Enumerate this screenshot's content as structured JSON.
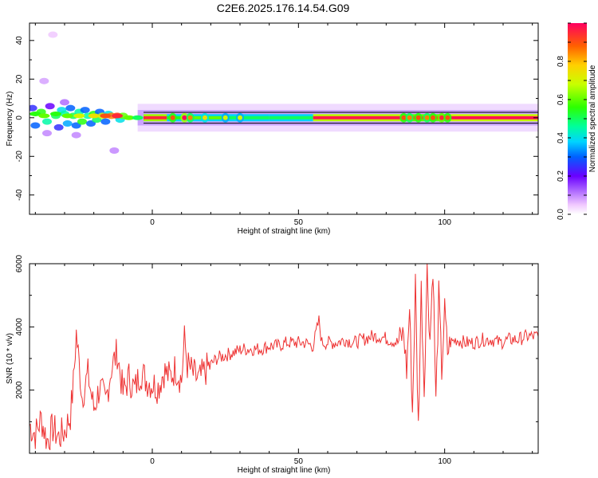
{
  "title": "C2E6.2025.176.14.54.G09",
  "chart_data": [
    {
      "type": "heatmap",
      "xlabel": "Height of straight line (km)",
      "ylabel": "Frequency (Hz)",
      "xlim": [
        -42,
        132
      ],
      "ylim": [
        -50,
        49
      ],
      "xticks": [
        0,
        50,
        100
      ],
      "xtick_labels": [
        "0",
        "50",
        "100"
      ],
      "yticks": [
        -40,
        -20,
        0,
        20,
        40
      ],
      "ytick_labels": [
        "-40",
        "-20",
        "0",
        "20",
        "40"
      ],
      "colorbar": {
        "label": "Normalized spectral amplitude",
        "range": [
          0,
          1
        ],
        "ticks": [
          0.0,
          0.2,
          0.4,
          0.6,
          0.8
        ],
        "tick_labels": [
          "0.0",
          "0.2",
          "0.4",
          "0.6",
          "0.8"
        ]
      },
      "band_center_hz": 0,
      "band_halfwidth_hz": 4,
      "noise_points": [
        {
          "x": -41,
          "y": 5,
          "v": 0.25
        },
        {
          "x": -40,
          "y": -4,
          "v": 0.3
        },
        {
          "x": -38,
          "y": 3,
          "v": 0.55
        },
        {
          "x": -36,
          "y": -2,
          "v": 0.45
        },
        {
          "x": -35,
          "y": 6,
          "v": 0.2
        },
        {
          "x": -34,
          "y": 43,
          "v": 0.05
        },
        {
          "x": -33,
          "y": 1,
          "v": 0.5
        },
        {
          "x": -32,
          "y": -5,
          "v": 0.25
        },
        {
          "x": -31,
          "y": 4,
          "v": 0.4
        },
        {
          "x": -30,
          "y": 2,
          "v": 0.45
        },
        {
          "x": -29,
          "y": -3,
          "v": 0.35
        },
        {
          "x": -28,
          "y": 5,
          "v": 0.3
        },
        {
          "x": -27,
          "y": 1,
          "v": 0.5
        },
        {
          "x": -26,
          "y": -4,
          "v": 0.3
        },
        {
          "x": -25,
          "y": 3,
          "v": 0.45
        },
        {
          "x": -24,
          "y": -2,
          "v": 0.55
        },
        {
          "x": -23,
          "y": 4,
          "v": 0.3
        },
        {
          "x": -22,
          "y": 1,
          "v": 0.45
        },
        {
          "x": -21,
          "y": -3,
          "v": 0.3
        },
        {
          "x": -20,
          "y": 2,
          "v": 0.55
        },
        {
          "x": -19,
          "y": -1,
          "v": 0.5
        },
        {
          "x": -18,
          "y": 3,
          "v": 0.3
        },
        {
          "x": -17,
          "y": 1,
          "v": 0.7
        },
        {
          "x": -16,
          "y": -2,
          "v": 0.3
        },
        {
          "x": -15,
          "y": 2,
          "v": 0.4
        },
        {
          "x": -14,
          "y": 1,
          "v": 0.85
        },
        {
          "x": -13,
          "y": -17,
          "v": 0.1
        },
        {
          "x": -12,
          "y": 1,
          "v": 0.9
        },
        {
          "x": -11,
          "y": -1,
          "v": 0.4
        },
        {
          "x": -10,
          "y": 1,
          "v": 0.6
        },
        {
          "x": -37,
          "y": 19,
          "v": 0.08
        },
        {
          "x": -36,
          "y": -8,
          "v": 0.1
        },
        {
          "x": -30,
          "y": 8,
          "v": 0.12
        },
        {
          "x": -26,
          "y": -9,
          "v": 0.1
        }
      ],
      "ridge_points": [
        {
          "x": -40,
          "y": 2,
          "v": 0.55
        },
        {
          "x": -37,
          "y": 1,
          "v": 0.6
        },
        {
          "x": -33,
          "y": 2,
          "v": 0.55
        },
        {
          "x": -29,
          "y": 1,
          "v": 0.6
        },
        {
          "x": -25,
          "y": 1,
          "v": 0.7
        },
        {
          "x": -20,
          "y": 1,
          "v": 0.75
        },
        {
          "x": -16,
          "y": 1,
          "v": 0.9
        },
        {
          "x": -12,
          "y": 1,
          "v": 0.95
        },
        {
          "x": -8,
          "y": 0,
          "v": 0.6
        },
        {
          "x": -5,
          "y": 0,
          "v": 0.5
        }
      ],
      "ridge_segments": [
        {
          "x0": -3,
          "x1": 5,
          "v": 0.95
        },
        {
          "x0": 5,
          "x1": 12,
          "v": 0.55
        },
        {
          "x0": 12,
          "x1": 25,
          "v": 0.6
        },
        {
          "x0": 25,
          "x1": 40,
          "v": 0.5
        },
        {
          "x0": 40,
          "x1": 55,
          "v": 0.5
        },
        {
          "x0": 55,
          "x1": 85,
          "v": 0.97
        },
        {
          "x0": 85,
          "x1": 102,
          "v": 0.9
        },
        {
          "x0": 102,
          "x1": 132,
          "v": 0.98
        }
      ],
      "hotspots": [
        {
          "x": 7,
          "v": 0.9
        },
        {
          "x": 11,
          "v": 1.0
        },
        {
          "x": 13,
          "v": 0.85
        },
        {
          "x": 18,
          "v": 0.75
        },
        {
          "x": 25,
          "v": 0.7
        },
        {
          "x": 30,
          "v": 0.7
        },
        {
          "x": 86,
          "v": 0.9
        },
        {
          "x": 88,
          "v": 0.85
        },
        {
          "x": 91,
          "v": 0.9
        },
        {
          "x": 94,
          "v": 0.85
        },
        {
          "x": 96,
          "v": 0.9
        },
        {
          "x": 99,
          "v": 0.95
        },
        {
          "x": 101,
          "v": 0.9
        }
      ]
    },
    {
      "type": "line",
      "xlabel": "Height of straight line (km)",
      "ylabel": "SNR (10 * v/v)",
      "xlim": [
        -42,
        132
      ],
      "ylim": [
        0,
        6000
      ],
      "xticks": [
        0,
        50,
        100
      ],
      "xtick_labels": [
        "0",
        "50",
        "100"
      ],
      "yticks": [
        2000,
        4000,
        6000
      ],
      "ytick_labels": [
        "2000",
        "4000",
        "6000"
      ],
      "color": "#ee3333",
      "x": [
        -42,
        -40,
        -38,
        -36,
        -34,
        -32,
        -30,
        -28,
        -27,
        -26,
        -24,
        -22,
        -20,
        -18,
        -16,
        -14,
        -12,
        -10,
        -8,
        -6,
        -4,
        -2,
        0,
        2,
        4,
        6,
        8,
        10,
        11,
        12,
        14,
        16,
        18,
        20,
        22,
        25,
        28,
        31,
        34,
        37,
        40,
        43,
        46,
        49,
        52,
        55,
        57,
        58,
        60,
        63,
        66,
        69,
        72,
        75,
        78,
        81,
        84,
        86,
        87,
        88,
        89,
        90,
        91,
        92,
        93,
        94,
        95,
        96,
        97,
        98,
        99,
        100,
        101,
        102,
        104,
        107,
        110,
        113,
        116,
        119,
        122,
        125,
        128,
        132
      ],
      "y": [
        900,
        600,
        1100,
        400,
        800,
        500,
        700,
        1200,
        2200,
        3800,
        1800,
        2500,
        1400,
        2100,
        1600,
        2700,
        3200,
        1900,
        2400,
        2000,
        2600,
        2300,
        2200,
        2100,
        2600,
        2400,
        2700,
        2300,
        3600,
        2800,
        2500,
        2300,
        2600,
        2800,
        3000,
        3100,
        3200,
        3300,
        3300,
        3300,
        3400,
        3400,
        3500,
        3500,
        3500,
        3400,
        4200,
        3500,
        3500,
        3500,
        3600,
        3500,
        3600,
        3700,
        3700,
        3600,
        3500,
        3800,
        2600,
        4600,
        1300,
        5400,
        800,
        5200,
        2000,
        5800,
        3600,
        6000,
        1600,
        5000,
        2600,
        4500,
        3200,
        3500,
        3600,
        3500,
        3500,
        3600,
        3600,
        3500,
        3600,
        3600,
        3700,
        3700
      ]
    }
  ]
}
